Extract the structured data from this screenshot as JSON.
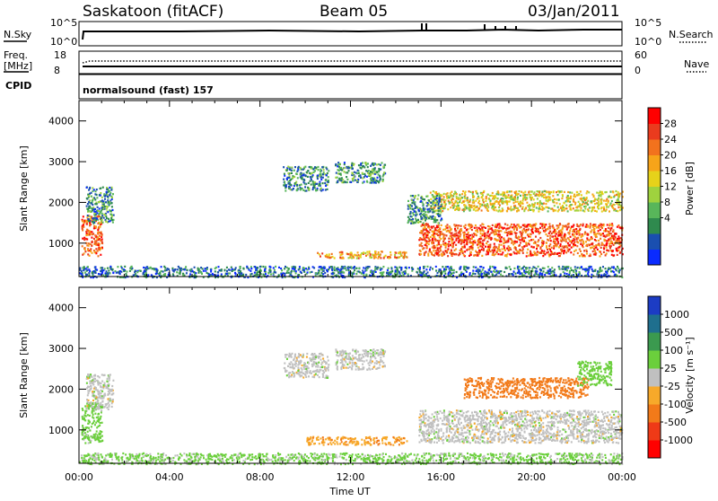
{
  "header": {
    "station": "Saskatoon (fitACF)",
    "beam": "Beam 05",
    "date": "03/Jan/2011"
  },
  "labels": {
    "nsky": "N.Sky",
    "nsearch": "N.Search",
    "freq": "Freq.",
    "mhz": "[MHz]",
    "nave": "Nave",
    "cpid": "CPID",
    "cpid_value": "normalsound (fast) 157",
    "slant_range": "Slant Range [km]",
    "time_ut": "Time UT",
    "power_label": "Power [dB]",
    "velocity_label": "Velocity [m s⁻¹]"
  },
  "summary_ticks": {
    "nsky": [
      "10^5",
      "10^0"
    ],
    "nsearch": [
      "10^5",
      "10^0"
    ],
    "freq": [
      "18",
      "8"
    ],
    "nave": [
      "60",
      "0"
    ]
  },
  "colorbars": {
    "power": {
      "ticks": [
        "28",
        "24",
        "20",
        "16",
        "12",
        "8",
        "4"
      ],
      "colors": [
        "#0a2bff",
        "#1a4fb0",
        "#2f8a4e",
        "#58b65a",
        "#9fd23e",
        "#e6d21a",
        "#f7a419",
        "#f2721d",
        "#ea3b1e",
        "#ff0000"
      ]
    },
    "velocity": {
      "ticks": [
        "1000",
        "500",
        "100",
        "25",
        "-25",
        "-100",
        "-500",
        "-1000"
      ],
      "colors": [
        "#1c3cc4",
        "#1f6f8e",
        "#3b9a4f",
        "#6bcf3c",
        "#c0c0c0",
        "#f7a92a",
        "#f27a19",
        "#ef3a17",
        "#ff0000"
      ]
    }
  },
  "chart_data": [
    {
      "type": "heatmap",
      "name": "power",
      "ylabel": "Slant Range [km]",
      "xlabel": "Time UT",
      "x_ticks": [
        "00:00",
        "04:00",
        "08:00",
        "12:00",
        "16:00",
        "20:00",
        "00:00"
      ],
      "y_ticks": [
        1000,
        2000,
        3000,
        4000
      ],
      "xlim": [
        0,
        24
      ],
      "ylim": [
        180,
        4500
      ],
      "colorbar": "Power [dB]",
      "regions": [
        {
          "t0": 0.1,
          "t1": 1.0,
          "r0": 700,
          "r1": 1700,
          "value": 24
        },
        {
          "t0": 0.3,
          "t1": 1.5,
          "r0": 1500,
          "r1": 2400,
          "value": 8
        },
        {
          "t0": 9.0,
          "t1": 11.0,
          "r0": 2300,
          "r1": 2900,
          "value": 8
        },
        {
          "t0": 11.3,
          "t1": 13.5,
          "r0": 2500,
          "r1": 3000,
          "value": 8
        },
        {
          "t0": 10.5,
          "t1": 14.5,
          "r0": 650,
          "r1": 820,
          "value": 20
        },
        {
          "t0": 15.0,
          "t1": 24.0,
          "r0": 700,
          "r1": 1500,
          "value": 24
        },
        {
          "t0": 15.5,
          "t1": 24.0,
          "r0": 1800,
          "r1": 2300,
          "value": 16
        },
        {
          "t0": 14.5,
          "t1": 16.0,
          "r0": 1500,
          "r1": 2200,
          "value": 8
        },
        {
          "t0": 0.0,
          "t1": 24.0,
          "r0": 180,
          "r1": 450,
          "value": 6
        }
      ]
    },
    {
      "type": "heatmap",
      "name": "velocity",
      "ylabel": "Slant Range [km]",
      "xlabel": "Time UT",
      "x_ticks": [
        "00:00",
        "04:00",
        "08:00",
        "12:00",
        "16:00",
        "20:00",
        "00:00"
      ],
      "y_ticks": [
        1000,
        2000,
        3000,
        4000
      ],
      "xlim": [
        0,
        24
      ],
      "ylim": [
        180,
        4500
      ],
      "colorbar": "Velocity [m s⁻¹]",
      "regions": [
        {
          "t0": 0.1,
          "t1": 1.0,
          "r0": 700,
          "r1": 1700,
          "value": 50
        },
        {
          "t0": 0.3,
          "t1": 1.5,
          "r0": 1500,
          "r1": 2400,
          "value": 0
        },
        {
          "t0": 9.0,
          "t1": 11.0,
          "r0": 2300,
          "r1": 2900,
          "value": 0
        },
        {
          "t0": 11.3,
          "t1": 13.5,
          "r0": 2500,
          "r1": 3000,
          "value": 0
        },
        {
          "t0": 10.0,
          "t1": 14.5,
          "r0": 650,
          "r1": 850,
          "value": -80
        },
        {
          "t0": 15.0,
          "t1": 24.0,
          "r0": 700,
          "r1": 1500,
          "value": 0
        },
        {
          "t0": 17.0,
          "t1": 22.5,
          "r0": 1800,
          "r1": 2300,
          "value": -200
        },
        {
          "t0": 22.0,
          "t1": 23.5,
          "r0": 2100,
          "r1": 2700,
          "value": 60
        },
        {
          "t0": 0.0,
          "t1": 24.0,
          "r0": 180,
          "r1": 450,
          "value": 40
        }
      ]
    }
  ]
}
